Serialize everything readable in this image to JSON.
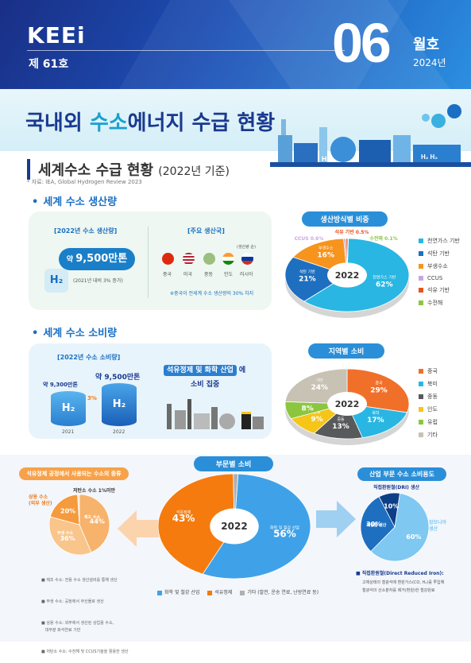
{
  "header": {
    "logo": "KEEi",
    "issue": "제 61호",
    "month": "06",
    "month_label": "월호",
    "year": "2024년"
  },
  "title": {
    "part1": "국내외 ",
    "part2": "수소",
    "part3": "에너지 수급 현황"
  },
  "world": {
    "heading": "세계수소 수급 현황",
    "heading_sub": "(2022년 기준)",
    "source": "* 자료: IEA, Global Hydrogen Review 2023",
    "production": {
      "title": "세계 수소 생산량",
      "box_label": "[2022년 수소 생산량]",
      "amount_prefix": "약 ",
      "amount": "9,500만톤",
      "increase": "(2021년 대비 3% 증가)",
      "h2": "H₂",
      "countries_label": "[주요 생산국]",
      "order_note": "(생산량 순)",
      "countries": [
        "중국",
        "미국",
        "중동",
        "인도",
        "러시아"
      ],
      "note": "※중국이 전세계 수소 생산량의 30% 차지"
    },
    "method_chart": {
      "title": "생산방식별 비중",
      "center": "2022",
      "legend": [
        "천연가스 기반",
        "석탄 기반",
        "부생수소",
        "CCUS",
        "석유 기반",
        "수전해"
      ]
    },
    "consumption": {
      "title": "세계 수소 소비량",
      "box_label": "[2022년 수소 소비량]",
      "val2021": "약 9,300만톤",
      "val2022": "약 9,500만톤",
      "growth": "3%",
      "year2021": "2021",
      "year2022": "2022",
      "h2": "H₂",
      "industry_highlight": "석유정제 및 화학 산업",
      "industry_suffix": "에",
      "industry_line2": "소비 집중"
    },
    "region_chart": {
      "title": "지역별 소비",
      "center": "2022",
      "legend": [
        "중국",
        "북미",
        "중동",
        "인도",
        "유럽",
        "기타"
      ]
    }
  },
  "sector": {
    "left_title": "석유정제 공정에서 사용되는 수소의 종류",
    "low_carbon": "저탄소 수소 1%미만",
    "left_labels": {
      "sangyong": "상용 수소\n(외부 생산)",
      "jeje": "제조 수소",
      "bu": "부생 수소"
    },
    "left_notes": [
      "■ 제조 수소: 전용 수소 생산설비를 통해 생산",
      "■ 부생 수소: 공정에서 부산물로 생산",
      "■ 상용 수소: 외부에서 생산된 상업용 수소,\n   대부분 화석연료 기반",
      "■ 저탄소 수소: 수전해 및 CCUS기술을 활용한 생산"
    ],
    "center_title": "부문별 소비",
    "center": "2022",
    "center_legend": [
      "화학 및 철강 산업",
      "석유정제",
      "기타 (발전, 운송 연료, 난방연료 등)"
    ],
    "right_title": "산업 부문 수소 소비용도",
    "right_sub": "직접환원철(DRI) 생산",
    "right_labels": {
      "ammonia": "암모니아\n생산",
      "methanol": "메탄올 생산"
    },
    "dri_title": "■ 직접환원철(Direct Reduced Iron):",
    "dri_desc": "고체상태의 철광석에 환원가스(CO, H₂)를 투입해\n철광석의 산소분자를 제거(환원)한 철강원료"
  },
  "chart_data": [
    {
      "type": "pie",
      "title": "생산방식별 비중",
      "categories": [
        "천연가스 기반",
        "석탄 기반",
        "부생수소",
        "CCUS",
        "석유 기반",
        "수전해"
      ],
      "values": [
        62,
        21,
        16,
        0.6,
        0.5,
        0.1
      ],
      "colors": [
        "#29b6e3",
        "#1e6fc0",
        "#f7941d",
        "#c9a6e0",
        "#e8531b",
        "#8cc63f"
      ]
    },
    {
      "type": "pie",
      "title": "지역별 소비",
      "categories": [
        "중국",
        "북미",
        "중동",
        "인도",
        "유럽",
        "기타"
      ],
      "values": [
        29,
        17,
        13,
        9,
        8,
        24
      ],
      "colors": [
        "#f0702a",
        "#29b6e3",
        "#58595b",
        "#f5c518",
        "#8cc63f",
        "#c8c2b4"
      ]
    },
    {
      "type": "pie",
      "title": "석유정제 공정에서 사용되는 수소의 종류",
      "categories": [
        "제조 수소",
        "부생 수소",
        "상용 수소",
        "저탄소 수소"
      ],
      "values": [
        44,
        36,
        20,
        1
      ],
      "colors": [
        "#f7b36b",
        "#f9c58a",
        "#f59a3d",
        "#fde2c2"
      ]
    },
    {
      "type": "pie",
      "title": "부문별 소비",
      "categories": [
        "화학 및 철강 산업",
        "석유정제",
        "기타"
      ],
      "values": [
        56,
        43,
        1
      ],
      "colors": [
        "#3fa2e8",
        "#f57b0f",
        "#b0b0b0"
      ]
    },
    {
      "type": "pie",
      "title": "산업 부문 수소 소비용도",
      "categories": [
        "암모니아 생산",
        "메탄올 생산",
        "직접환원철(DRI) 생산"
      ],
      "values": [
        60,
        30,
        10
      ],
      "colors": [
        "#7ec8f2",
        "#1e6fc0",
        "#0d3f86"
      ]
    }
  ]
}
